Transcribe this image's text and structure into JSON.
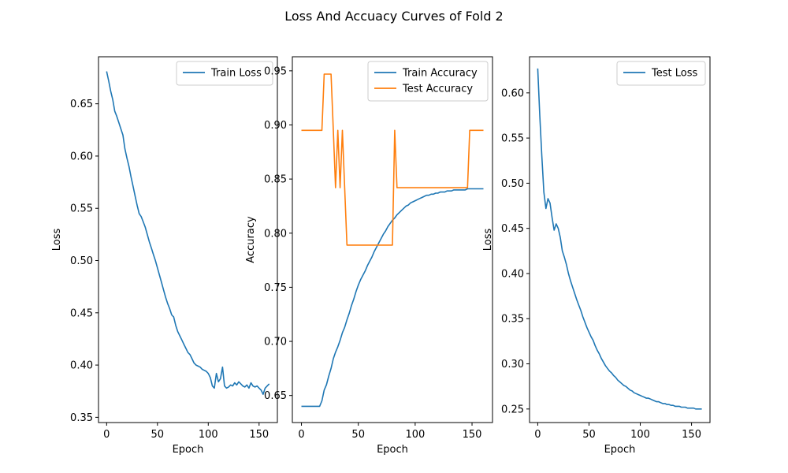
{
  "figure": {
    "title": "Loss And Accuacy Curves of Fold 2",
    "colors": {
      "blue": "#1f77b4",
      "orange": "#ff7f0e"
    }
  },
  "chart_data": [
    {
      "type": "line",
      "title": "",
      "xlabel": "Epoch",
      "ylabel": "Loss",
      "xlim": [
        -8,
        168
      ],
      "ylim": [
        0.345,
        0.695
      ],
      "xticks": [
        "0",
        "50",
        "100",
        "150"
      ],
      "yticks": [
        "0.35",
        "0.40",
        "0.45",
        "0.50",
        "0.55",
        "0.60",
        "0.65"
      ],
      "legend": "upper-right",
      "series": [
        {
          "name": "Train Loss",
          "color": "#1f77b4",
          "x": [
            0,
            2,
            4,
            6,
            8,
            10,
            12,
            14,
            16,
            18,
            20,
            22,
            24,
            26,
            28,
            30,
            32,
            34,
            36,
            38,
            40,
            42,
            44,
            46,
            48,
            50,
            52,
            54,
            56,
            58,
            60,
            62,
            64,
            66,
            68,
            70,
            72,
            74,
            76,
            78,
            80,
            82,
            84,
            86,
            88,
            90,
            92,
            94,
            96,
            98,
            100,
            102,
            104,
            106,
            108,
            110,
            112,
            114,
            116,
            118,
            120,
            122,
            124,
            126,
            128,
            130,
            132,
            134,
            136,
            138,
            140,
            142,
            144,
            146,
            148,
            150,
            152,
            154,
            156,
            158,
            160
          ],
          "y": [
            0.681,
            0.672,
            0.662,
            0.654,
            0.643,
            0.638,
            0.632,
            0.626,
            0.62,
            0.607,
            0.598,
            0.59,
            0.58,
            0.571,
            0.562,
            0.553,
            0.545,
            0.542,
            0.537,
            0.532,
            0.525,
            0.518,
            0.512,
            0.506,
            0.5,
            0.493,
            0.486,
            0.479,
            0.472,
            0.465,
            0.459,
            0.454,
            0.448,
            0.446,
            0.438,
            0.432,
            0.428,
            0.424,
            0.42,
            0.416,
            0.412,
            0.41,
            0.406,
            0.402,
            0.4,
            0.399,
            0.398,
            0.396,
            0.395,
            0.394,
            0.392,
            0.388,
            0.38,
            0.378,
            0.392,
            0.384,
            0.387,
            0.398,
            0.38,
            0.378,
            0.379,
            0.381,
            0.38,
            0.383,
            0.381,
            0.384,
            0.382,
            0.38,
            0.379,
            0.381,
            0.378,
            0.383,
            0.38,
            0.379,
            0.38,
            0.378,
            0.376,
            0.372,
            0.378,
            0.38,
            0.382
          ]
        }
      ]
    },
    {
      "type": "line",
      "title": "",
      "xlabel": "Epoch",
      "ylabel": "Accuracy",
      "xlim": [
        -8,
        168
      ],
      "ylim": [
        0.625,
        0.963
      ],
      "xticks": [
        "0",
        "50",
        "100",
        "150"
      ],
      "yticks": [
        "0.65",
        "0.70",
        "0.75",
        "0.80",
        "0.85",
        "0.90",
        "0.95"
      ],
      "legend": "upper-right",
      "series": [
        {
          "name": "Train Accuracy",
          "color": "#1f77b4",
          "x": [
            0,
            2,
            4,
            6,
            8,
            10,
            12,
            14,
            16,
            18,
            20,
            22,
            24,
            26,
            28,
            30,
            32,
            34,
            36,
            38,
            40,
            42,
            44,
            46,
            48,
            50,
            52,
            54,
            56,
            58,
            60,
            62,
            64,
            66,
            68,
            70,
            72,
            74,
            76,
            78,
            80,
            82,
            84,
            86,
            88,
            90,
            92,
            94,
            96,
            98,
            100,
            102,
            104,
            106,
            108,
            110,
            112,
            114,
            116,
            118,
            120,
            122,
            124,
            126,
            128,
            130,
            132,
            134,
            136,
            138,
            140,
            142,
            144,
            146,
            148,
            150,
            152,
            154,
            156,
            158,
            160
          ],
          "y": [
            0.64,
            0.64,
            0.64,
            0.64,
            0.64,
            0.64,
            0.64,
            0.64,
            0.64,
            0.645,
            0.655,
            0.66,
            0.668,
            0.675,
            0.684,
            0.69,
            0.695,
            0.701,
            0.708,
            0.713,
            0.72,
            0.726,
            0.733,
            0.739,
            0.746,
            0.752,
            0.757,
            0.761,
            0.765,
            0.77,
            0.774,
            0.778,
            0.783,
            0.787,
            0.791,
            0.795,
            0.799,
            0.802,
            0.806,
            0.809,
            0.812,
            0.814,
            0.817,
            0.819,
            0.821,
            0.823,
            0.825,
            0.826,
            0.828,
            0.829,
            0.83,
            0.831,
            0.832,
            0.833,
            0.834,
            0.835,
            0.835,
            0.836,
            0.836,
            0.837,
            0.837,
            0.838,
            0.838,
            0.838,
            0.839,
            0.839,
            0.839,
            0.84,
            0.84,
            0.84,
            0.84,
            0.84,
            0.84,
            0.841,
            0.841,
            0.841,
            0.841,
            0.841,
            0.841,
            0.841,
            0.841
          ]
        },
        {
          "name": "Test Accuracy",
          "color": "#ff7f0e",
          "x": [
            0,
            2,
            4,
            6,
            8,
            10,
            12,
            14,
            16,
            18,
            20,
            22,
            24,
            26,
            28,
            30,
            32,
            34,
            36,
            38,
            40,
            42,
            44,
            46,
            48,
            50,
            52,
            54,
            56,
            58,
            60,
            62,
            64,
            66,
            68,
            70,
            72,
            74,
            76,
            78,
            80,
            82,
            84,
            86,
            88,
            90,
            92,
            94,
            96,
            98,
            100,
            102,
            104,
            106,
            108,
            110,
            112,
            114,
            116,
            118,
            120,
            122,
            124,
            126,
            128,
            130,
            132,
            134,
            136,
            138,
            140,
            142,
            144,
            146,
            148,
            150,
            152,
            154,
            156,
            158,
            160
          ],
          "y": [
            0.895,
            0.895,
            0.895,
            0.895,
            0.895,
            0.895,
            0.895,
            0.895,
            0.895,
            0.895,
            0.947,
            0.947,
            0.947,
            0.947,
            0.895,
            0.842,
            0.895,
            0.842,
            0.895,
            0.842,
            0.789,
            0.789,
            0.789,
            0.789,
            0.789,
            0.789,
            0.789,
            0.789,
            0.789,
            0.789,
            0.789,
            0.789,
            0.789,
            0.789,
            0.789,
            0.789,
            0.789,
            0.789,
            0.789,
            0.789,
            0.789,
            0.895,
            0.842,
            0.842,
            0.842,
            0.842,
            0.842,
            0.842,
            0.842,
            0.842,
            0.842,
            0.842,
            0.842,
            0.842,
            0.842,
            0.842,
            0.842,
            0.842,
            0.842,
            0.842,
            0.842,
            0.842,
            0.842,
            0.842,
            0.842,
            0.842,
            0.842,
            0.842,
            0.842,
            0.842,
            0.842,
            0.842,
            0.842,
            0.842,
            0.895,
            0.895,
            0.895,
            0.895,
            0.895,
            0.895,
            0.895
          ]
        }
      ]
    },
    {
      "type": "line",
      "title": "",
      "xlabel": "Epoch",
      "ylabel": "Loss",
      "xlim": [
        -8,
        168
      ],
      "ylim": [
        0.235,
        0.64
      ],
      "xticks": [
        "0",
        "50",
        "100",
        "150"
      ],
      "yticks": [
        "0.25",
        "0.30",
        "0.35",
        "0.40",
        "0.45",
        "0.50",
        "0.55",
        "0.60"
      ],
      "legend": "upper-right",
      "series": [
        {
          "name": "Test Loss",
          "color": "#1f77b4",
          "x": [
            0,
            2,
            4,
            6,
            8,
            10,
            12,
            14,
            16,
            18,
            20,
            22,
            24,
            26,
            28,
            30,
            32,
            34,
            36,
            38,
            40,
            42,
            44,
            46,
            48,
            50,
            52,
            54,
            56,
            58,
            60,
            62,
            64,
            66,
            68,
            70,
            72,
            74,
            76,
            78,
            80,
            82,
            84,
            86,
            88,
            90,
            92,
            94,
            96,
            98,
            100,
            102,
            104,
            106,
            108,
            110,
            112,
            114,
            116,
            118,
            120,
            122,
            124,
            126,
            128,
            130,
            132,
            134,
            136,
            138,
            140,
            142,
            144,
            146,
            148,
            150,
            152,
            154,
            156,
            158,
            160
          ],
          "y": [
            0.627,
            0.575,
            0.53,
            0.49,
            0.472,
            0.483,
            0.478,
            0.462,
            0.448,
            0.455,
            0.45,
            0.44,
            0.425,
            0.418,
            0.41,
            0.4,
            0.392,
            0.385,
            0.378,
            0.371,
            0.365,
            0.359,
            0.352,
            0.346,
            0.34,
            0.335,
            0.33,
            0.326,
            0.32,
            0.315,
            0.311,
            0.306,
            0.302,
            0.298,
            0.295,
            0.292,
            0.29,
            0.287,
            0.285,
            0.282,
            0.28,
            0.278,
            0.276,
            0.275,
            0.273,
            0.271,
            0.27,
            0.268,
            0.267,
            0.266,
            0.265,
            0.264,
            0.263,
            0.262,
            0.262,
            0.261,
            0.26,
            0.259,
            0.258,
            0.258,
            0.257,
            0.256,
            0.256,
            0.255,
            0.255,
            0.254,
            0.254,
            0.253,
            0.253,
            0.253,
            0.252,
            0.252,
            0.252,
            0.251,
            0.251,
            0.251,
            0.251,
            0.25,
            0.25,
            0.25,
            0.25
          ]
        }
      ]
    }
  ]
}
